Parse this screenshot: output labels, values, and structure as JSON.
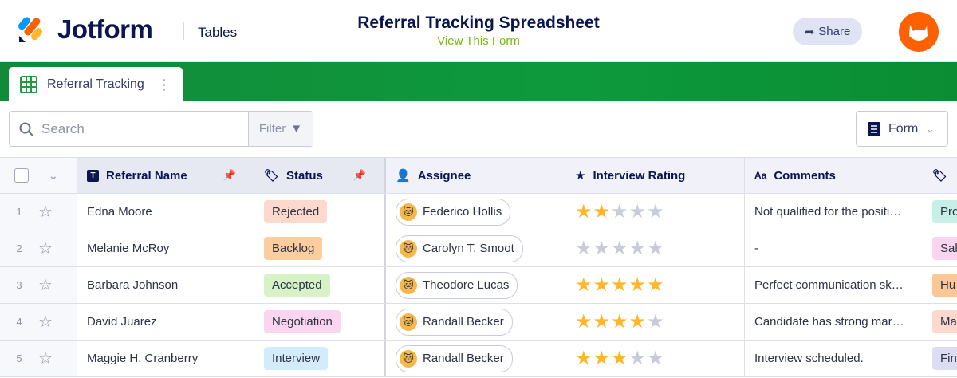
{
  "header": {
    "brand": "Jotform",
    "product": "Tables",
    "title": "Referral Tracking Spreadsheet",
    "subtitle": "View This Form",
    "share": "Share"
  },
  "tab": {
    "label": "Referral Tracking"
  },
  "toolbar": {
    "search_placeholder": "Search",
    "filter": "Filter",
    "form": "Form"
  },
  "columns": [
    "Referral Name",
    "Status",
    "Assignee",
    "Interview Rating",
    "Comments",
    ""
  ],
  "colors": {
    "accent_green": "#0d9a3c",
    "brand_navy": "#0a1551",
    "star": "#ffb629",
    "star_empty": "#c8ccd8"
  },
  "rows": [
    {
      "num": "1",
      "name": "Edna Moore",
      "status": "Rejected",
      "status_color": "#fdd8cc",
      "assignee": "Federico Hollis",
      "rating": 2,
      "comment": "Not qualified for the positi…",
      "dept": "Pro",
      "dept_color": "#c6f0e6"
    },
    {
      "num": "2",
      "name": "Melanie McRoy",
      "status": "Backlog",
      "status_color": "#fdcc9f",
      "assignee": "Carolyn T. Smoot",
      "rating": 0,
      "comment": "-",
      "dept": "Sal",
      "dept_color": "#fbd5ef"
    },
    {
      "num": "3",
      "name": "Barbara Johnson",
      "status": "Accepted",
      "status_color": "#d6f2c6",
      "assignee": "Theodore Lucas",
      "rating": 5,
      "comment": "Perfect communication sk…",
      "dept": "Hu",
      "dept_color": "#fdc795"
    },
    {
      "num": "4",
      "name": "David Juarez",
      "status": "Negotiation",
      "status_color": "#fbd5ef",
      "assignee": "Randall Becker",
      "rating": 4,
      "comment": "Candidate has strong mar…",
      "dept": "Ma",
      "dept_color": "#fdd8cc"
    },
    {
      "num": "5",
      "name": "Maggie H. Cranberry",
      "status": "Interview",
      "status_color": "#d3ecfb",
      "assignee": "Randall Becker",
      "rating": 3,
      "comment": "Interview scheduled.",
      "dept": "Fin",
      "dept_color": "#dcdcf5"
    }
  ]
}
